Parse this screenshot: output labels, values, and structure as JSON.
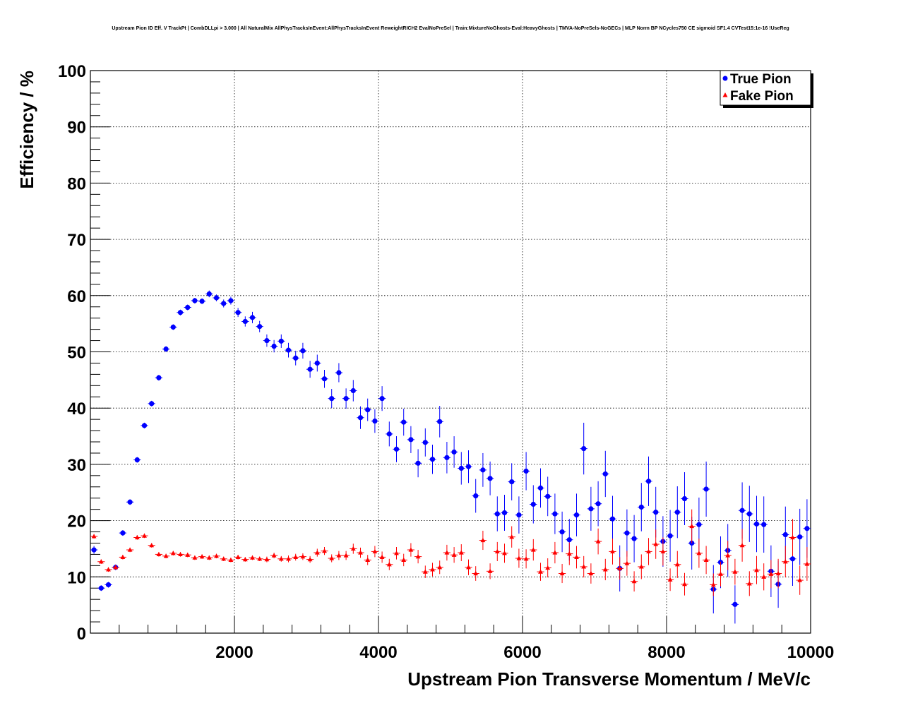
{
  "chart_data": {
    "type": "scatter",
    "title": "Upstream Pion ID Eff. V TrackPt | CombDLLpi > 3.000 | All NaturalMix AllPhysTracksInEvent:AllPhysTracksInEvent ReweightRICH2 EvalNoPreSel | Train:MixtureNoGhosts-Eval:HeavyGhosts | TMVA-NoPreSels-NoGECs | MLP Norm BP NCycles750 CE sigmoid SF1.4 CVTest15:1e-16 !UseReg",
    "xlabel": "Upstream Pion Transverse Momentum / MeV/c",
    "ylabel": "Efficiency / %",
    "xlim": [
      0,
      10000
    ],
    "ylim": [
      0,
      100
    ],
    "x_ticks": [
      2000,
      4000,
      6000,
      8000,
      10000
    ],
    "y_ticks": [
      0,
      10,
      20,
      30,
      40,
      50,
      60,
      70,
      80,
      90,
      100
    ],
    "grid": true,
    "legend_position": "top-right",
    "series": [
      {
        "name": "True Pion",
        "color": "#0000ff",
        "marker": "circle",
        "x": [
          50,
          150,
          250,
          350,
          450,
          550,
          650,
          750,
          850,
          950,
          1050,
          1150,
          1250,
          1350,
          1450,
          1550,
          1650,
          1750,
          1850,
          1950,
          2050,
          2150,
          2250,
          2350,
          2450,
          2550,
          2650,
          2750,
          2850,
          2950,
          3050,
          3150,
          3250,
          3350,
          3450,
          3550,
          3650,
          3750,
          3850,
          3950,
          4050,
          4150,
          4250,
          4350,
          4450,
          4550,
          4650,
          4750,
          4850,
          4950,
          5050,
          5150,
          5250,
          5350,
          5450,
          5550,
          5650,
          5750,
          5850,
          5950,
          6050,
          6150,
          6250,
          6350,
          6450,
          6550,
          6650,
          6750,
          6850,
          6950,
          7050,
          7150,
          7250,
          7350,
          7450,
          7550,
          7650,
          7750,
          7850,
          7950,
          8050,
          8150,
          8250,
          8350,
          8450,
          8550,
          8650,
          8750,
          8850,
          8950,
          9050,
          9150,
          9250,
          9350,
          9450,
          9550,
          9650,
          9750,
          9850,
          9950
        ],
        "y": [
          14.8,
          8.0,
          8.6,
          11.7,
          17.8,
          23.3,
          30.8,
          36.9,
          40.8,
          45.4,
          50.5,
          54.4,
          57.0,
          57.9,
          59.1,
          59.0,
          60.3,
          59.6,
          58.6,
          59.1,
          57.0,
          55.4,
          56.1,
          54.5,
          52.0,
          51.0,
          51.9,
          50.3,
          48.9,
          50.2,
          46.9,
          48.0,
          45.2,
          41.7,
          46.3,
          41.7,
          43.1,
          38.3,
          39.7,
          37.7,
          41.7,
          35.4,
          32.7,
          37.5,
          34.4,
          30.2,
          33.9,
          30.9,
          37.6,
          31.2,
          32.2,
          29.3,
          29.6,
          24.4,
          29.0,
          27.5,
          21.2,
          21.4,
          26.9,
          21.0,
          28.8,
          22.9,
          25.8,
          24.3,
          21.2,
          18.0,
          16.6,
          21.0,
          32.8,
          22.1,
          23.0,
          28.3,
          20.3,
          11.5,
          17.8,
          16.8,
          22.4,
          27.0,
          21.5,
          16.3,
          17.3,
          21.5,
          23.9,
          16.0,
          19.3,
          25.6,
          7.8,
          12.6,
          14.7,
          5.1,
          21.8,
          21.2,
          19.4,
          19.3,
          11.0,
          8.7,
          17.5,
          13.2,
          17.1,
          18.6
        ],
        "err": [
          0.7,
          0.5,
          0.5,
          0.5,
          0.5,
          0.5,
          0.5,
          0.5,
          0.5,
          0.5,
          0.5,
          0.5,
          0.5,
          0.5,
          0.5,
          0.5,
          0.6,
          0.6,
          0.7,
          0.7,
          0.8,
          0.9,
          1.0,
          1.0,
          1.1,
          1.1,
          1.2,
          1.3,
          1.3,
          1.4,
          1.5,
          1.5,
          1.6,
          1.7,
          1.7,
          1.8,
          1.9,
          2.0,
          2.0,
          2.1,
          2.2,
          2.2,
          2.3,
          2.4,
          2.4,
          2.5,
          2.5,
          2.6,
          2.8,
          2.8,
          2.8,
          2.9,
          2.9,
          3.0,
          3.0,
          3.0,
          3.1,
          3.2,
          3.3,
          3.3,
          3.4,
          3.4,
          3.5,
          3.5,
          3.6,
          3.6,
          3.7,
          3.8,
          4.6,
          3.9,
          4.0,
          4.1,
          4.1,
          4.1,
          4.2,
          4.2,
          4.3,
          4.4,
          4.5,
          4.5,
          4.6,
          4.6,
          4.7,
          4.7,
          4.8,
          4.9,
          4.3,
          4.6,
          4.7,
          3.4,
          5.0,
          5.0,
          5.0,
          5.0,
          4.6,
          4.2,
          5.0,
          4.8,
          5.0,
          5.2
        ]
      },
      {
        "name": "Fake Pion",
        "color": "#ff0000",
        "marker": "triangle",
        "x": [
          50,
          150,
          250,
          350,
          450,
          550,
          650,
          750,
          850,
          950,
          1050,
          1150,
          1250,
          1350,
          1450,
          1550,
          1650,
          1750,
          1850,
          1950,
          2050,
          2150,
          2250,
          2350,
          2450,
          2550,
          2650,
          2750,
          2850,
          2950,
          3050,
          3150,
          3250,
          3350,
          3450,
          3550,
          3650,
          3750,
          3850,
          3950,
          4050,
          4150,
          4250,
          4350,
          4450,
          4550,
          4650,
          4750,
          4850,
          4950,
          5050,
          5150,
          5250,
          5350,
          5450,
          5550,
          5650,
          5750,
          5850,
          5950,
          6050,
          6150,
          6250,
          6350,
          6450,
          6550,
          6650,
          6750,
          6850,
          6950,
          7050,
          7150,
          7250,
          7350,
          7450,
          7550,
          7650,
          7750,
          7850,
          7950,
          8050,
          8150,
          8250,
          8350,
          8450,
          8550,
          8650,
          8750,
          8850,
          8950,
          9050,
          9150,
          9250,
          9350,
          9450,
          9550,
          9650,
          9750,
          9850,
          9950
        ],
        "y": [
          17.2,
          12.7,
          11.3,
          11.7,
          13.5,
          14.8,
          17.0,
          17.3,
          15.6,
          14.0,
          13.7,
          14.2,
          14.0,
          13.9,
          13.4,
          13.6,
          13.4,
          13.7,
          13.2,
          13.0,
          13.5,
          13.1,
          13.4,
          13.2,
          13.1,
          13.8,
          13.2,
          13.2,
          13.5,
          13.6,
          13.1,
          14.3,
          14.6,
          13.3,
          13.8,
          13.8,
          15.0,
          14.3,
          13.0,
          14.5,
          13.5,
          12.2,
          14.2,
          13.0,
          14.8,
          13.6,
          10.9,
          11.3,
          11.7,
          14.3,
          13.9,
          14.3,
          11.7,
          10.6,
          16.5,
          11.0,
          14.5,
          14.2,
          17.1,
          13.3,
          13.2,
          14.8,
          10.9,
          11.6,
          14.3,
          10.6,
          14.1,
          13.5,
          11.8,
          10.6,
          16.3,
          11.3,
          14.5,
          11.5,
          12.4,
          9.2,
          11.8,
          14.5,
          15.8,
          14.5,
          9.5,
          12.2,
          8.7,
          19.0,
          14.2,
          13.0,
          8.6,
          10.5,
          13.8,
          10.9,
          15.6,
          8.8,
          11.2,
          10.0,
          10.5,
          10.6,
          12.7,
          17.0,
          9.4,
          12.3
        ],
        "err": [
          0.4,
          0.4,
          0.4,
          0.4,
          0.4,
          0.4,
          0.4,
          0.4,
          0.4,
          0.4,
          0.4,
          0.4,
          0.4,
          0.4,
          0.4,
          0.4,
          0.4,
          0.4,
          0.4,
          0.4,
          0.4,
          0.4,
          0.4,
          0.4,
          0.5,
          0.5,
          0.5,
          0.6,
          0.6,
          0.6,
          0.6,
          0.7,
          0.7,
          0.7,
          0.8,
          0.8,
          0.9,
          0.9,
          0.9,
          1.0,
          1.0,
          1.0,
          1.1,
          1.1,
          1.2,
          1.2,
          1.1,
          1.2,
          1.2,
          1.4,
          1.4,
          1.5,
          1.4,
          1.3,
          1.7,
          1.4,
          1.7,
          1.7,
          1.9,
          1.7,
          1.7,
          1.9,
          1.6,
          1.7,
          1.9,
          1.7,
          2.0,
          2.0,
          1.9,
          1.8,
          2.3,
          1.9,
          2.3,
          2.0,
          2.2,
          1.8,
          2.2,
          2.4,
          2.6,
          2.5,
          2.0,
          2.4,
          2.0,
          3.0,
          2.6,
          2.5,
          2.0,
          2.2,
          2.6,
          2.3,
          2.9,
          2.2,
          2.5,
          2.4,
          2.5,
          2.6,
          2.8,
          3.3,
          2.6,
          3.0
        ]
      }
    ]
  }
}
